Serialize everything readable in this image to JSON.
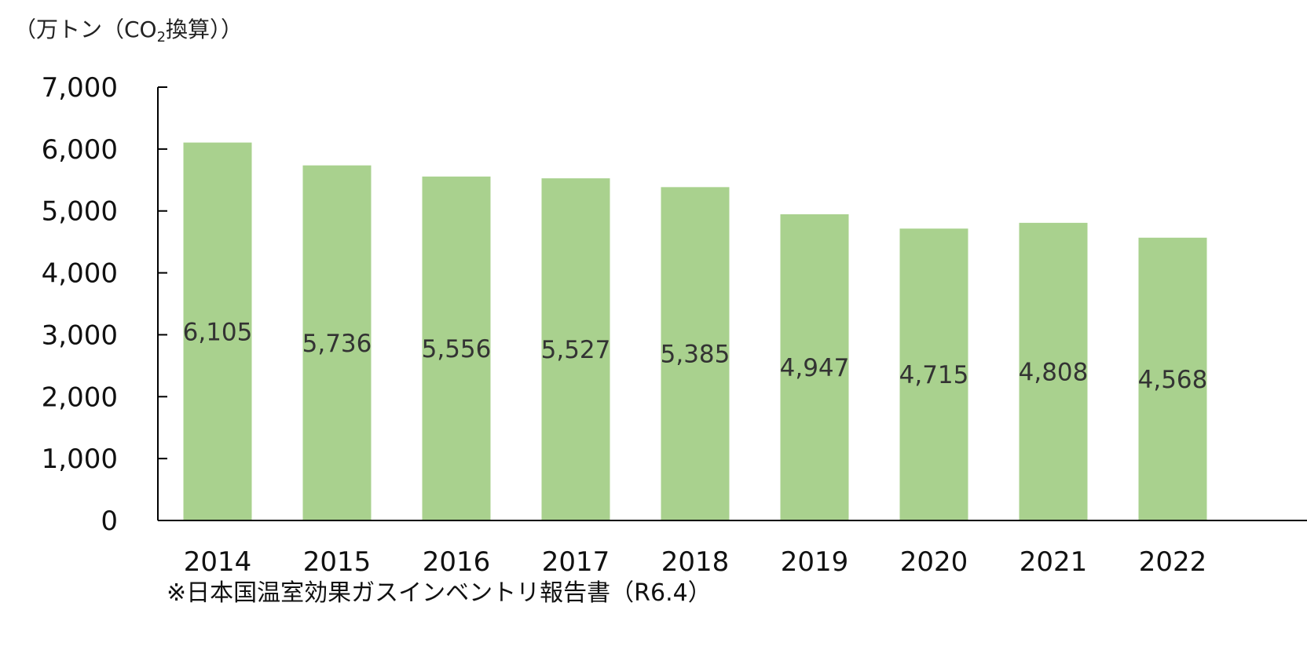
{
  "chart_data": {
    "type": "bar",
    "unit_label": {
      "before_sub": "（万トン（CO",
      "sub": "2",
      "after_sub": "換算））"
    },
    "categories": [
      "2014",
      "2015",
      "2016",
      "2017",
      "2018",
      "2019",
      "2020",
      "2021",
      "2022"
    ],
    "values": [
      6105,
      5736,
      5556,
      5527,
      5385,
      4947,
      4715,
      4808,
      4568
    ],
    "value_labels": [
      "6,105",
      "5,736",
      "5,556",
      "5,527",
      "5,385",
      "4,947",
      "4,715",
      "4,808",
      "4,568"
    ],
    "y_ticks": [
      "0",
      "1,000",
      "2,000",
      "3,000",
      "4,000",
      "5,000",
      "6,000",
      "7,000"
    ],
    "ylim": [
      0,
      7000
    ],
    "grid": false,
    "legend": "none",
    "colors": {
      "bar": "#a9d18e",
      "axis": "#000000",
      "text": "#222222",
      "data_label": "#333333"
    },
    "source_note": "※日本国温室効果ガスインベントリ報告書（R6.4）"
  }
}
